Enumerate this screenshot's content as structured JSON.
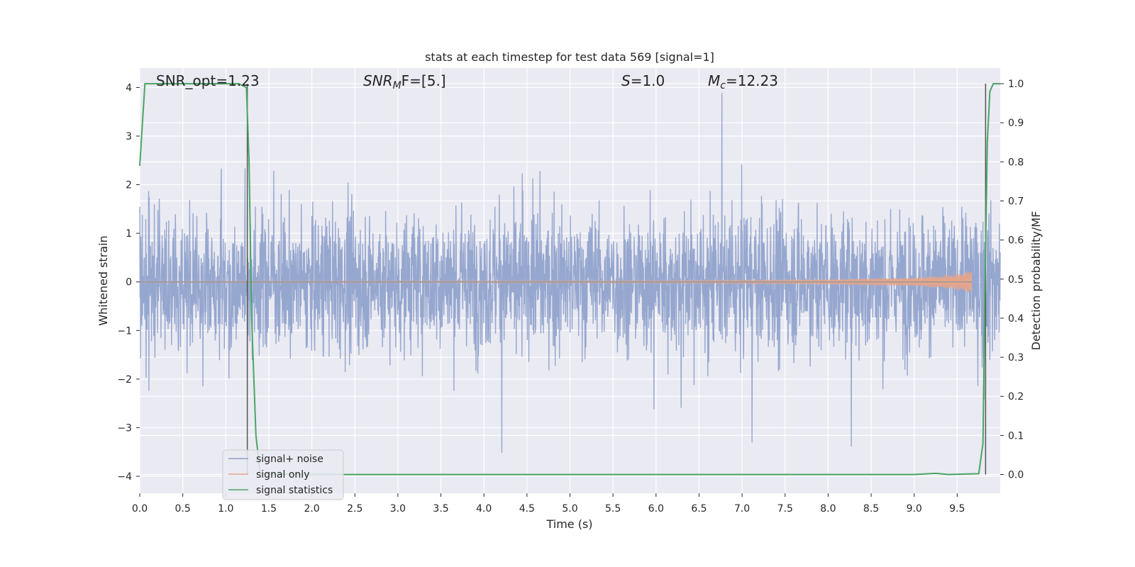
{
  "chart_data": {
    "type": "line",
    "title": "stats at each timestep for test data 569 [signal=1]",
    "xlabel": "Time (s)",
    "ylabel": "Whitened strain",
    "y2label": "Detection probability/MF",
    "xlim": [
      0.0,
      10.0
    ],
    "ylim": [
      -4.35,
      4.4
    ],
    "y2lim": [
      -0.048,
      1.04
    ],
    "xticks": [
      "0.0",
      "0.5",
      "1.0",
      "1.5",
      "2.0",
      "2.5",
      "3.0",
      "3.5",
      "4.0",
      "4.5",
      "5.0",
      "5.5",
      "6.0",
      "6.5",
      "7.0",
      "7.5",
      "8.0",
      "8.5",
      "9.0",
      "9.5"
    ],
    "yticks": [
      "−4",
      "−3",
      "−2",
      "−1",
      "0",
      "1",
      "2",
      "3",
      "4"
    ],
    "y2ticks": [
      "0.0",
      "0.1",
      "0.2",
      "0.3",
      "0.4",
      "0.5",
      "0.6",
      "0.7",
      "0.8",
      "0.9",
      "1.0"
    ],
    "grid": true,
    "legend": "lower-left",
    "annotations": {
      "snr_opt": "SNR_opt=1.23",
      "snr_mf_base": "SNR",
      "snr_mf_sub": "M",
      "snr_mf_rest": "F=[5.]",
      "s_label": "S",
      "s_rest": "=1.0",
      "mc_base": "M",
      "mc_sub": "c",
      "mc_rest": "=12.23"
    },
    "series": [
      {
        "name": "signal+ noise",
        "color": "#8da0cb",
        "description_values": "dense whitened noise, approx range [-3.9, 4.0], bulk within ±1.6"
      },
      {
        "name": "signal only",
        "color": "#e5a58a",
        "x": [
          0.0,
          6.0,
          7.0,
          8.0,
          8.5,
          9.0,
          9.3,
          9.5,
          9.6,
          9.67
        ],
        "amplitude": [
          0.01,
          0.02,
          0.03,
          0.05,
          0.07,
          0.09,
          0.12,
          0.16,
          0.2,
          0.25
        ]
      },
      {
        "name": "signal statistics",
        "color": "#4aa564",
        "axis": "right",
        "x": [
          0.0,
          0.06,
          0.1,
          0.3,
          0.6,
          0.9,
          1.15,
          1.24,
          1.27,
          1.3,
          1.35,
          1.4,
          2.0,
          5.0,
          6.5,
          9.0,
          9.25,
          9.4,
          9.75,
          9.8,
          9.82,
          9.85,
          9.88,
          9.92,
          10.0
        ],
        "values": [
          0.79,
          1.0,
          1.0,
          1.0,
          1.0,
          1.0,
          1.0,
          0.99,
          0.8,
          0.4,
          0.1,
          0.002,
          0.0,
          0.0,
          0.0,
          0.0,
          0.003,
          0.0,
          0.002,
          0.08,
          0.45,
          0.85,
          0.98,
          1.0,
          1.0
        ]
      }
    ],
    "vlines": [
      1.25,
      9.83
    ],
    "vline_color": "#555555"
  }
}
